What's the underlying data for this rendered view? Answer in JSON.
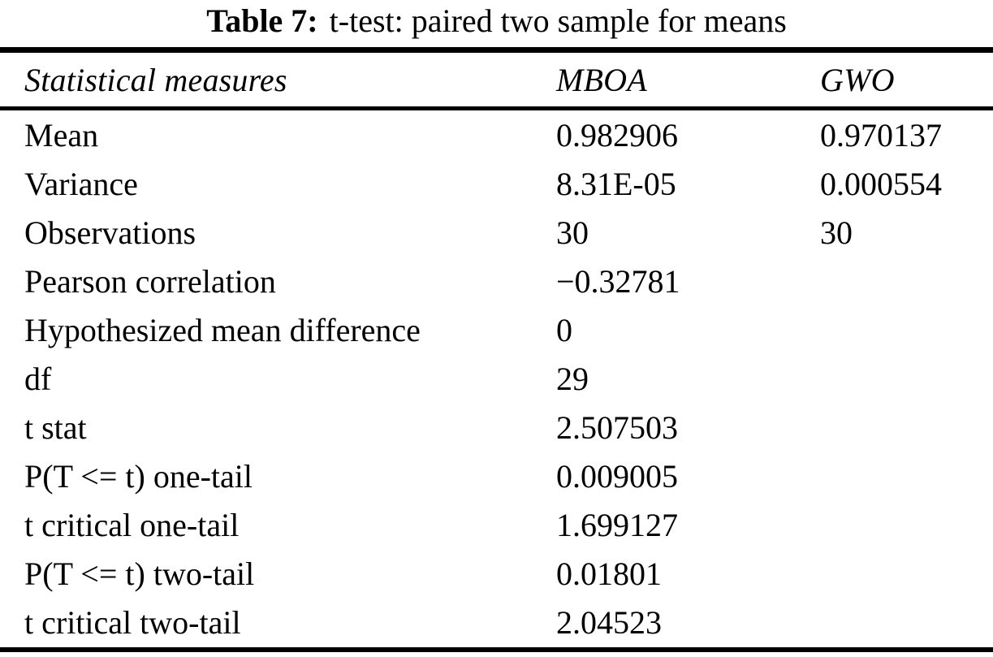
{
  "caption": {
    "label": "Table 7:",
    "title": "t-test: paired two sample for means"
  },
  "table": {
    "headers": {
      "measures": "Statistical measures",
      "mboa": "MBOA",
      "gwo": "GWO"
    },
    "rows": [
      {
        "measure": "Mean",
        "mboa": "0.982906",
        "gwo": "0.970137"
      },
      {
        "measure": "Variance",
        "mboa": "8.31E-05",
        "gwo": "0.000554"
      },
      {
        "measure": "Observations",
        "mboa": "30",
        "gwo": "30"
      },
      {
        "measure": "Pearson correlation",
        "mboa": "−0.32781",
        "gwo": ""
      },
      {
        "measure": "Hypothesized mean difference",
        "mboa": "0",
        "gwo": ""
      },
      {
        "measure": "df",
        "mboa": "29",
        "gwo": ""
      },
      {
        "measure": "t stat",
        "mboa": "2.507503",
        "gwo": ""
      },
      {
        "measure": "P(T <= t) one-tail",
        "mboa": "0.009005",
        "gwo": ""
      },
      {
        "measure": "t critical one-tail",
        "mboa": "1.699127",
        "gwo": ""
      },
      {
        "measure": "P(T <= t) two-tail",
        "mboa": "0.01801",
        "gwo": ""
      },
      {
        "measure": "t critical two-tail",
        "mboa": "2.04523",
        "gwo": ""
      }
    ]
  }
}
